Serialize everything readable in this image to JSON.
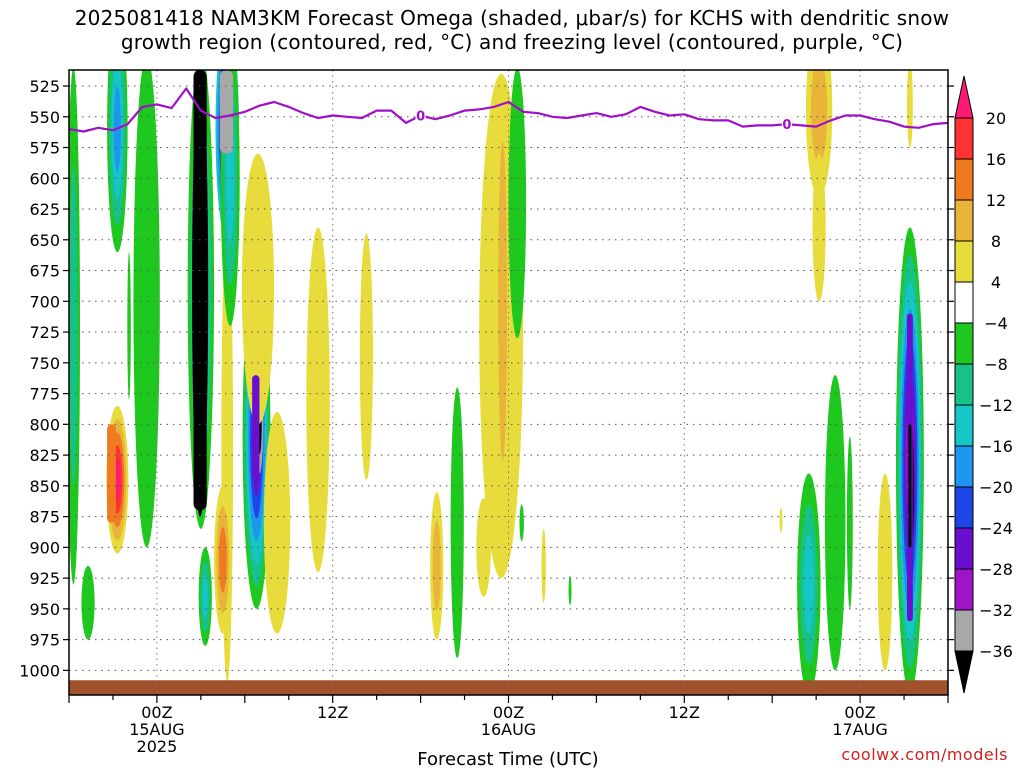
{
  "title_line1": "2025081418 NAM3KM Forecast Omega (shaded, μbar/s) for KCHS with dendritic snow",
  "title_line2": "growth region (contoured, red, °C) and freezing level (contoured, purple, °C)",
  "credit": "coolwx.com/models",
  "chart_data": {
    "type": "heatmap",
    "xlabel": "Forecast Time (UTC)",
    "ylabel": "",
    "x_hours": [
      0,
      60
    ],
    "x_ticks": [
      {
        "hour": 6,
        "lines": [
          "00Z",
          "15AUG",
          "2025"
        ]
      },
      {
        "hour": 18,
        "lines": [
          "12Z"
        ]
      },
      {
        "hour": 30,
        "lines": [
          "00Z",
          "16AUG"
        ]
      },
      {
        "hour": 42,
        "lines": [
          "12Z"
        ]
      },
      {
        "hour": 54,
        "lines": [
          "00Z",
          "17AUG"
        ]
      }
    ],
    "y_ticks": [
      525,
      550,
      575,
      600,
      625,
      650,
      675,
      700,
      725,
      750,
      775,
      800,
      825,
      850,
      875,
      900,
      925,
      950,
      975,
      1000
    ],
    "ylim_hpa": [
      1020,
      512
    ],
    "grid": true,
    "colorbar": {
      "levels": [
        20,
        16,
        12,
        8,
        4,
        -4,
        -8,
        -12,
        -16,
        -20,
        -24,
        -28,
        -32,
        -36
      ],
      "colors": [
        "#ff1a75",
        "#ff3333",
        "#f07a20",
        "#e8b43a",
        "#e8dc3c",
        "#ffffff",
        "#1ec81e",
        "#17c28a",
        "#16c6c6",
        "#1e96f0",
        "#1e46e6",
        "#6a0fd0",
        "#a014c8",
        "#a8a8a8",
        "#000000"
      ]
    },
    "freezing_level": {
      "label": "0",
      "color": "#a010c8",
      "hours": [
        0,
        1,
        2,
        3,
        4,
        5,
        6,
        7,
        8,
        9,
        10,
        11,
        12,
        13,
        14,
        15,
        16,
        17,
        18,
        19,
        20,
        21,
        22,
        23,
        24,
        25,
        26,
        27,
        28,
        29,
        30,
        31,
        32,
        33,
        34,
        35,
        36,
        37,
        38,
        39,
        40,
        41,
        42,
        43,
        44,
        45,
        46,
        47,
        48,
        49,
        50,
        51,
        52,
        53,
        54,
        55,
        56,
        57,
        58,
        59,
        60
      ],
      "hpa": [
        560,
        562,
        559,
        561,
        556,
        542,
        540,
        543,
        527,
        545,
        551,
        549,
        546,
        541,
        538,
        542,
        547,
        551,
        549,
        550,
        551,
        545,
        545,
        555,
        549,
        552,
        549,
        545,
        544,
        542,
        538,
        546,
        547,
        550,
        551,
        549,
        547,
        550,
        548,
        542,
        546,
        549,
        548,
        552,
        553,
        553,
        558,
        557,
        557,
        556,
        557,
        558,
        553,
        549,
        549,
        552,
        554,
        558,
        559,
        556,
        555
      ],
      "label_hours": [
        24,
        49
      ]
    },
    "shaded_features": [
      {
        "color_index": 14,
        "hours": [
          8.5,
          9.4
        ],
        "hpa": [
          512,
          870
        ]
      },
      {
        "color_index": 13,
        "hours": [
          10.3,
          11.2
        ],
        "hpa": [
          512,
          580
        ]
      },
      {
        "color_index": 11,
        "hours": [
          12.5,
          13.0
        ],
        "hpa": [
          760,
          845
        ]
      },
      {
        "color_index": 2,
        "hours": [
          2.6,
          3.2
        ],
        "hpa": [
          800,
          880
        ]
      },
      {
        "color_index": 11,
        "hours": [
          57.2,
          57.6
        ],
        "hpa": [
          710,
          960
        ]
      },
      {
        "color_index": 14,
        "hours": [
          57.3,
          57.5
        ],
        "hpa": [
          800,
          900
        ]
      }
    ],
    "surface_band": {
      "color": "#a0522d",
      "hpa": [
        1008,
        1020
      ]
    }
  }
}
